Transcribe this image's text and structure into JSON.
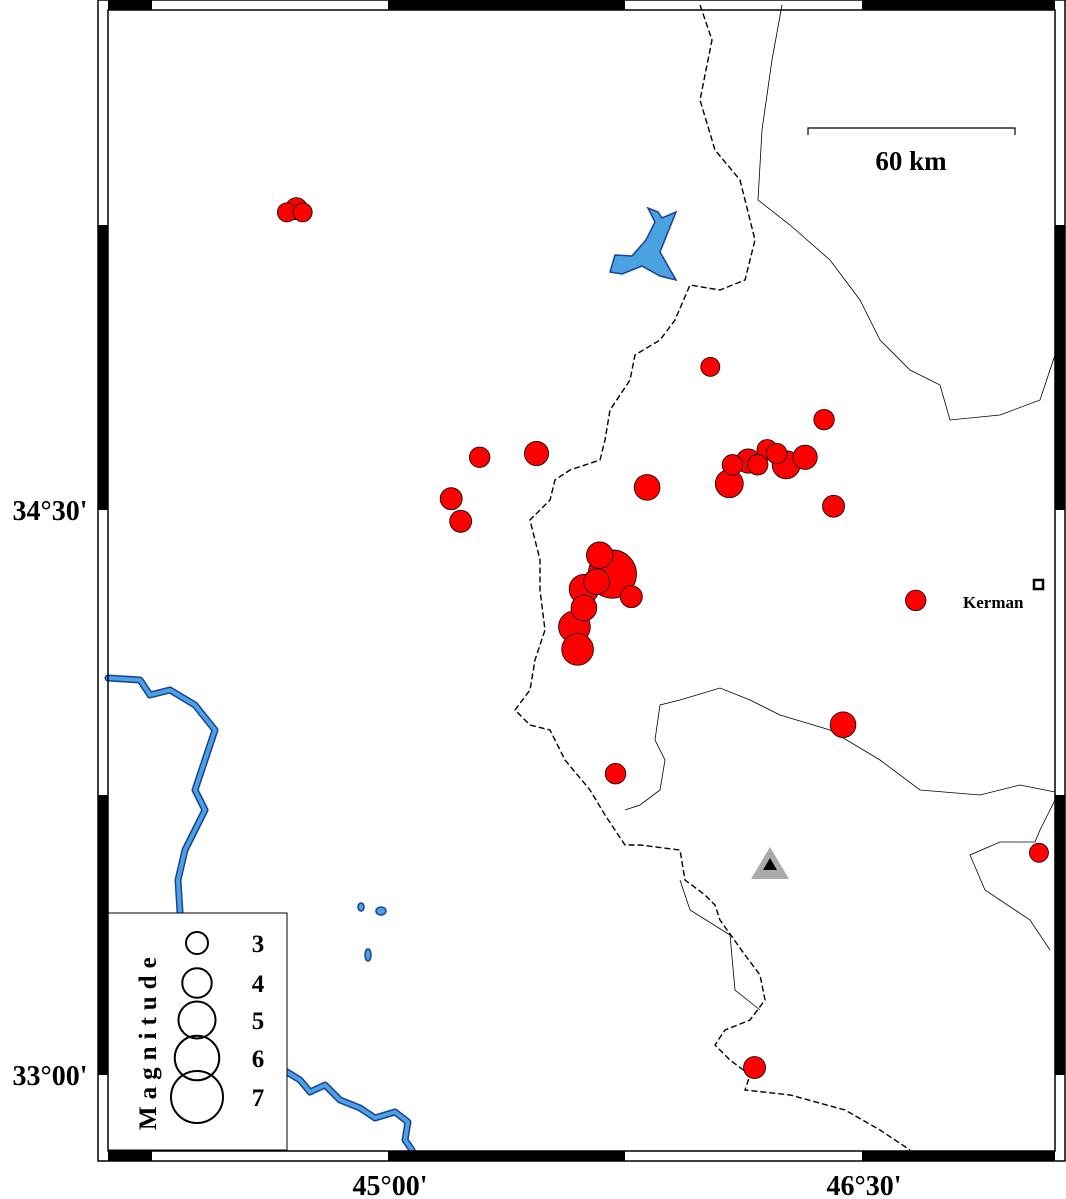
{
  "map": {
    "lon_range": [
      44.05,
      47.05
    ],
    "lat_range": [
      32.79,
      35.84
    ],
    "x_tick_labels": [
      {
        "lon": 45.0,
        "label": "45°00'"
      },
      {
        "lon": 46.5,
        "label": "46°30'"
      }
    ],
    "y_tick_labels": [
      {
        "lat": 34.5,
        "label": "34°30'"
      },
      {
        "lat": 33.0,
        "label": "33°00'"
      }
    ],
    "scale_bar": {
      "label": "60 km",
      "length_km": 60
    },
    "colors": {
      "event_fill": "#ff0000",
      "water": "#4aa3e0",
      "water_edge": "#1a3f9a",
      "station": "#aaaaaa"
    }
  },
  "city": {
    "name": "Kerman",
    "lon": 47.06,
    "lat": 34.3,
    "icon": "square-marker-icon"
  },
  "station": {
    "lon": 46.21,
    "lat": 33.56,
    "icon": "triangle-station-icon"
  },
  "legend": {
    "title": "Magnitude",
    "items": [
      {
        "mag": 3,
        "label": "3"
      },
      {
        "mag": 4,
        "label": "4"
      },
      {
        "mag": 5,
        "label": "5"
      },
      {
        "mag": 6,
        "label": "6"
      },
      {
        "mag": 7,
        "label": "7"
      }
    ]
  },
  "events": [
    {
      "lon": 44.68,
      "lat": 35.29,
      "mag": 2.6
    },
    {
      "lon": 44.73,
      "lat": 35.29,
      "mag": 2.6
    },
    {
      "lon": 44.71,
      "lat": 35.3,
      "mag": 3.0
    },
    {
      "lon": 46.02,
      "lat": 34.88,
      "mag": 2.6
    },
    {
      "lon": 46.38,
      "lat": 34.74,
      "mag": 2.8
    },
    {
      "lon": 45.29,
      "lat": 34.64,
      "mag": 2.8
    },
    {
      "lon": 45.47,
      "lat": 34.65,
      "mag": 3.3
    },
    {
      "lon": 45.2,
      "lat": 34.53,
      "mag": 3.0
    },
    {
      "lon": 45.23,
      "lat": 34.47,
      "mag": 3.0
    },
    {
      "lon": 45.82,
      "lat": 34.56,
      "mag": 3.5
    },
    {
      "lon": 46.08,
      "lat": 34.57,
      "mag": 3.8
    },
    {
      "lon": 46.09,
      "lat": 34.62,
      "mag": 2.8
    },
    {
      "lon": 46.14,
      "lat": 34.63,
      "mag": 3.3
    },
    {
      "lon": 46.2,
      "lat": 34.66,
      "mag": 2.8
    },
    {
      "lon": 46.26,
      "lat": 34.62,
      "mag": 3.8
    },
    {
      "lon": 46.32,
      "lat": 34.64,
      "mag": 3.3
    },
    {
      "lon": 46.17,
      "lat": 34.62,
      "mag": 2.8
    },
    {
      "lon": 46.23,
      "lat": 34.65,
      "mag": 2.8
    },
    {
      "lon": 46.41,
      "lat": 34.51,
      "mag": 3.0
    },
    {
      "lon": 45.77,
      "lat": 34.27,
      "mag": 3.0
    },
    {
      "lon": 45.71,
      "lat": 34.33,
      "mag": 6.5
    },
    {
      "lon": 45.62,
      "lat": 34.29,
      "mag": 4.0
    },
    {
      "lon": 45.66,
      "lat": 34.31,
      "mag": 3.5
    },
    {
      "lon": 45.67,
      "lat": 34.38,
      "mag": 3.6
    },
    {
      "lon": 45.62,
      "lat": 34.24,
      "mag": 3.5
    },
    {
      "lon": 45.59,
      "lat": 34.19,
      "mag": 4.3
    },
    {
      "lon": 45.6,
      "lat": 34.13,
      "mag": 4.3
    },
    {
      "lon": 46.67,
      "lat": 34.26,
      "mag": 2.8
    },
    {
      "lon": 46.44,
      "lat": 33.93,
      "mag": 3.5
    },
    {
      "lon": 45.72,
      "lat": 33.8,
      "mag": 2.8
    },
    {
      "lon": 47.06,
      "lat": 33.59,
      "mag": 2.6
    },
    {
      "lon": 46.16,
      "lat": 33.02,
      "mag": 3.0
    }
  ]
}
